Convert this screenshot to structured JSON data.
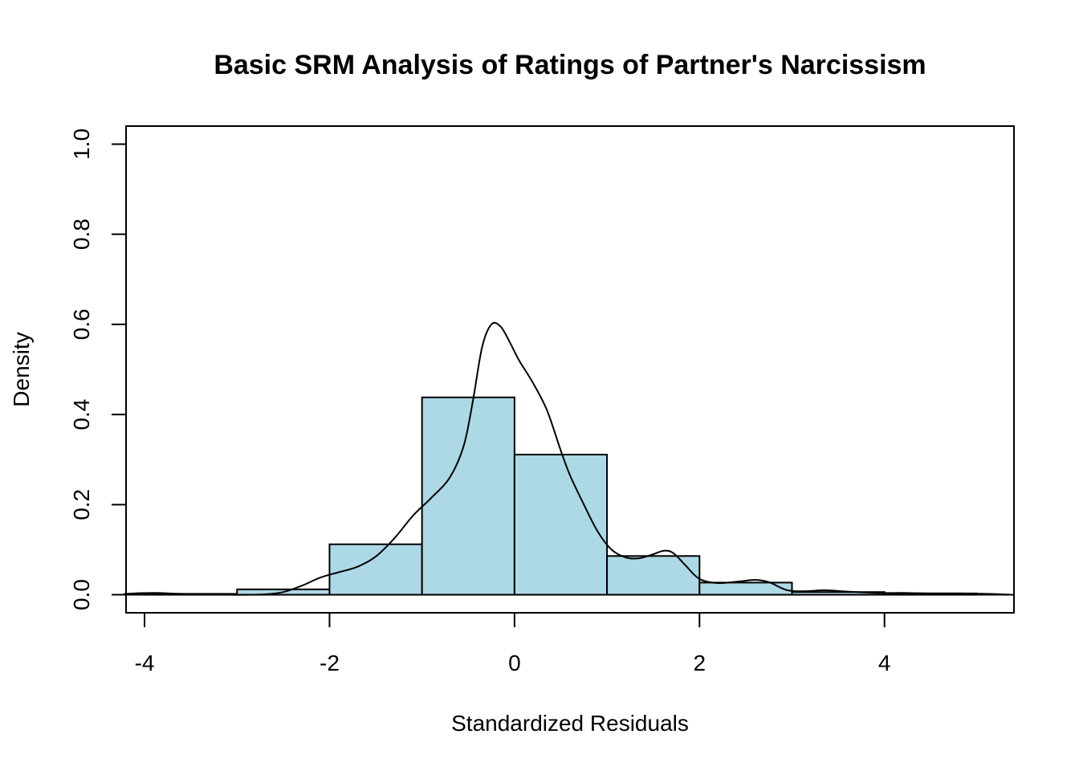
{
  "chart_data": {
    "type": "bar",
    "subtype": "histogram-with-density",
    "title": "Basic SRM Analysis of Ratings of Partner's Narcissism",
    "xlabel": "Standardized Residuals",
    "ylabel": "Density",
    "xlim": [
      -4.2,
      5.4
    ],
    "ylim": [
      -0.04,
      1.04
    ],
    "x_ticks": [
      -4,
      -2,
      0,
      2,
      4
    ],
    "x_tick_labels": [
      "-4",
      "-2",
      "0",
      "2",
      "4"
    ],
    "y_ticks": [
      0.0,
      0.2,
      0.4,
      0.6,
      0.8,
      1.0
    ],
    "y_tick_labels": [
      "0.0",
      "0.2",
      "0.4",
      "0.6",
      "0.8",
      "1.0"
    ],
    "grid": false,
    "bar_color": "#add8e6",
    "bins": [
      {
        "start": -4,
        "end": -3,
        "density": 0.002
      },
      {
        "start": -3,
        "end": -2,
        "density": 0.012
      },
      {
        "start": -2,
        "end": -1,
        "density": 0.112
      },
      {
        "start": -1,
        "end": 0,
        "density": 0.438
      },
      {
        "start": 0,
        "end": 1,
        "density": 0.311
      },
      {
        "start": 1,
        "end": 2,
        "density": 0.086
      },
      {
        "start": 2,
        "end": 3,
        "density": 0.027
      },
      {
        "start": 3,
        "end": 4,
        "density": 0.006
      },
      {
        "start": 4,
        "end": 5,
        "density": 0.003
      }
    ],
    "density_curve": {
      "x": [
        -4.7,
        -4.2,
        -3.9,
        -3.6,
        -3.3,
        -3.0,
        -2.7,
        -2.5,
        -2.3,
        -2.1,
        -1.9,
        -1.7,
        -1.5,
        -1.3,
        -1.1,
        -0.9,
        -0.7,
        -0.55,
        -0.45,
        -0.35,
        -0.25,
        -0.15,
        -0.05,
        0.05,
        0.2,
        0.35,
        0.5,
        0.6,
        0.75,
        0.9,
        1.05,
        1.2,
        1.35,
        1.5,
        1.62,
        1.72,
        1.85,
        2.0,
        2.2,
        2.45,
        2.6,
        2.75,
        2.95,
        3.15,
        3.35,
        3.6,
        3.9,
        4.2,
        4.5,
        4.8,
        5.1,
        5.4
      ],
      "y": [
        0.0,
        0.002,
        0.004,
        0.002,
        0.001,
        0.0,
        0.001,
        0.006,
        0.02,
        0.038,
        0.05,
        0.062,
        0.085,
        0.125,
        0.175,
        0.215,
        0.26,
        0.33,
        0.43,
        0.55,
        0.6,
        0.595,
        0.56,
        0.52,
        0.47,
        0.41,
        0.32,
        0.265,
        0.2,
        0.14,
        0.1,
        0.083,
        0.081,
        0.09,
        0.098,
        0.092,
        0.065,
        0.035,
        0.026,
        0.03,
        0.033,
        0.028,
        0.01,
        0.008,
        0.01,
        0.007,
        0.004,
        0.004,
        0.003,
        0.003,
        0.002,
        0.0
      ]
    }
  }
}
